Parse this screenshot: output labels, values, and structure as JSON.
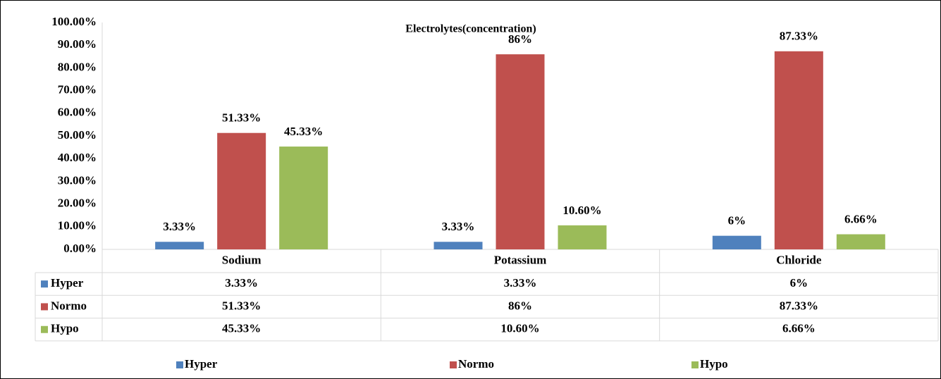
{
  "chart_data": {
    "type": "bar",
    "title": "Electrolytes(concentration)",
    "categories": [
      "Sodium",
      "Potassium",
      "Chloride"
    ],
    "series": [
      {
        "name": "Hyper",
        "color": "#4f81bd",
        "values": [
          3.33,
          3.33,
          6
        ],
        "value_labels": [
          "3.33%",
          "3.33%",
          "6%"
        ]
      },
      {
        "name": "Normo",
        "color": "#c0504d",
        "values": [
          51.33,
          86,
          87.33
        ],
        "value_labels": [
          "51.33%",
          "86%",
          "87.33%"
        ]
      },
      {
        "name": "Hypo",
        "color": "#9bbb59",
        "values": [
          45.33,
          10.6,
          6.66
        ],
        "value_labels": [
          "45.33%",
          "10.60%",
          "6.66%"
        ]
      }
    ],
    "ylim": [
      0,
      100
    ],
    "yticks": [
      {
        "value": 0,
        "label": "0.00%"
      },
      {
        "value": 10,
        "label": "10.00%"
      },
      {
        "value": 20,
        "label": "20.00%"
      },
      {
        "value": 30,
        "label": "30.00%"
      },
      {
        "value": 40,
        "label": "40.00%"
      },
      {
        "value": 50,
        "label": "50.00%"
      },
      {
        "value": 60,
        "label": "60.00%"
      },
      {
        "value": 70,
        "label": "70.00%"
      },
      {
        "value": 80,
        "label": "80.00%"
      },
      {
        "value": 90,
        "label": "90.00%"
      },
      {
        "value": 100,
        "label": "100.00%"
      }
    ],
    "grid": false,
    "legend": "bottom",
    "data_table": true
  }
}
